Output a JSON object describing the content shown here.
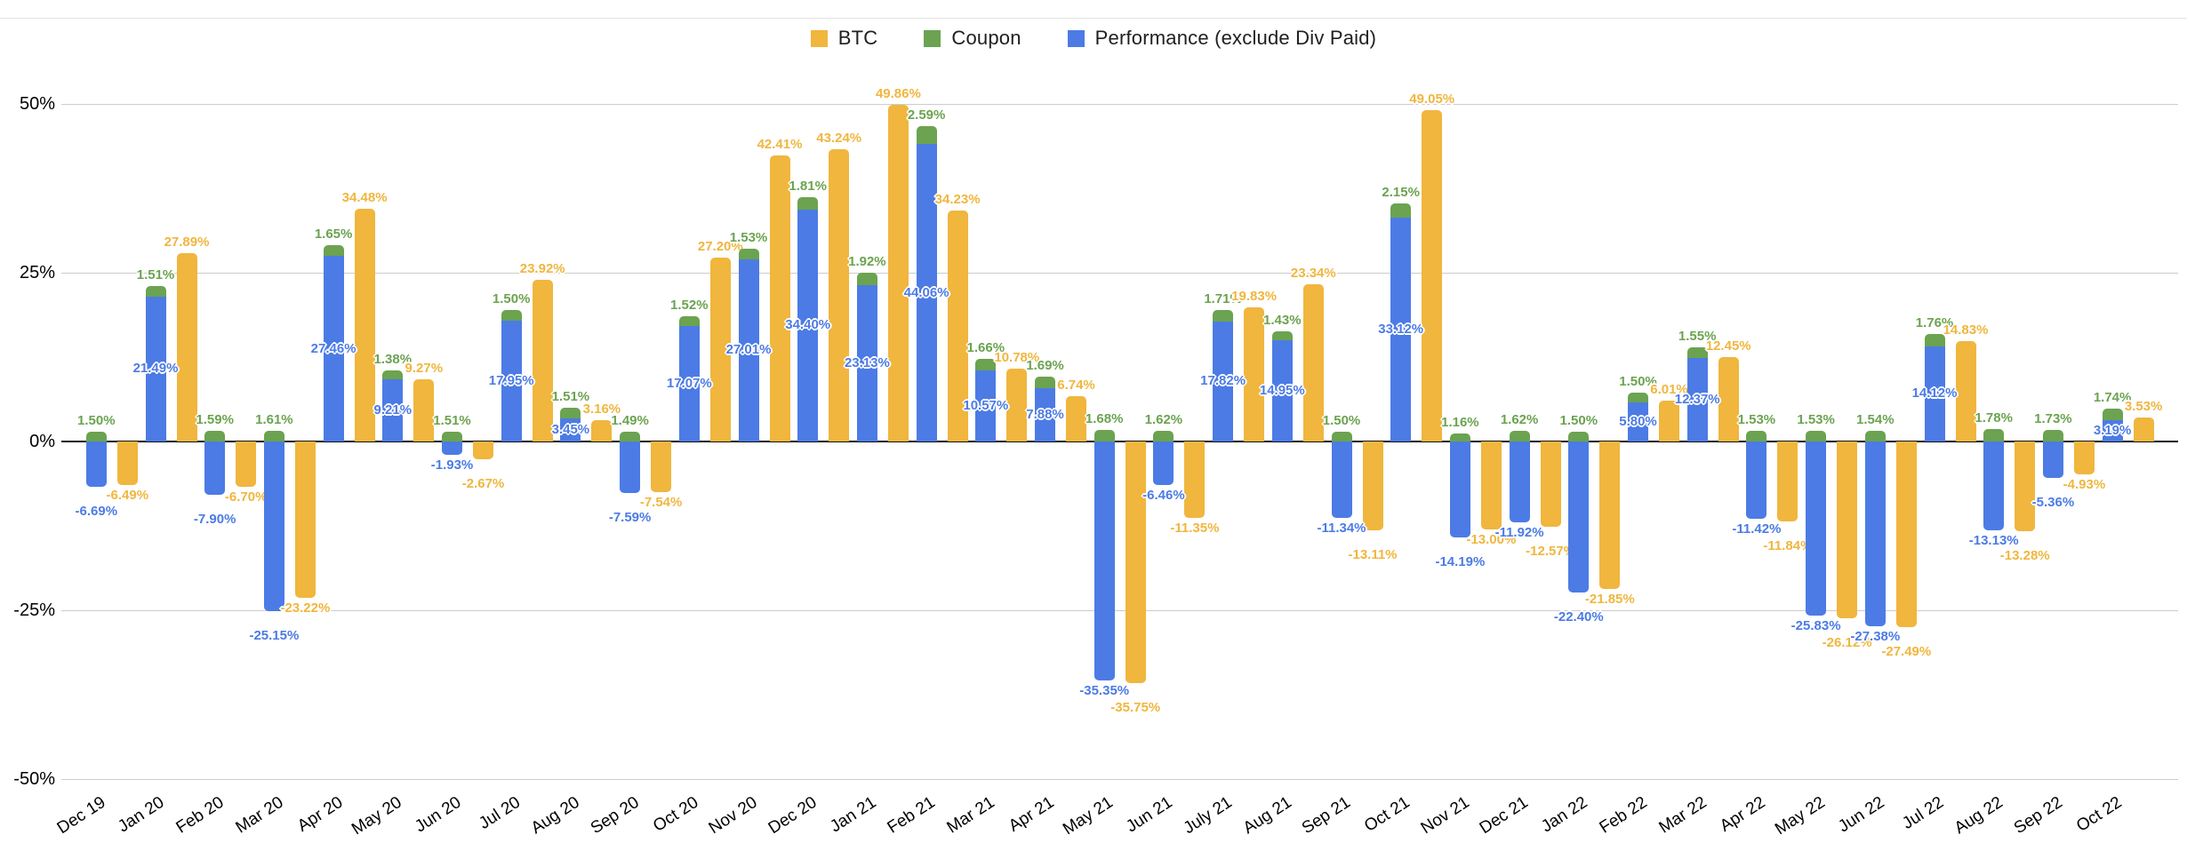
{
  "chart_data": {
    "type": "bar",
    "title": "",
    "xlabel": "",
    "ylabel": "",
    "ylim": [
      -50,
      50
    ],
    "y_ticks": [
      50,
      25,
      0,
      -25,
      -50
    ],
    "y_tick_format": "percent",
    "grid": true,
    "legend_position": "top",
    "bar_structure": "Coupon is stacked on top of Performance in one column; BTC is a separate adjacent column; every segment has a data label in its series color",
    "categories": [
      "Dec 19",
      "Jan 20",
      "Feb 20",
      "Mar 20",
      "Apr 20",
      "May 20",
      "Jun 20",
      "Jul 20",
      "Aug 20",
      "Sep 20",
      "Oct 20",
      "Nov 20",
      "Dec 20",
      "Jan 21",
      "Feb 21",
      "Mar 21",
      "Apr 21",
      "May 21",
      "Jun 21",
      "July 21",
      "Aug 21",
      "Sep 21",
      "Oct 21",
      "Nov 21",
      "Dec 21",
      "Jan 22",
      "Feb 22",
      "Mar 22",
      "Apr 22",
      "May 22",
      "Jun 22",
      "Jul 22",
      "Aug 22",
      "Sep 22",
      "Oct 22"
    ],
    "series": [
      {
        "name": "BTC",
        "color": "#F0B63E",
        "values": [
          -6.49,
          27.89,
          -6.7,
          -23.22,
          34.48,
          9.27,
          -2.67,
          23.92,
          3.16,
          -7.54,
          27.2,
          42.41,
          43.24,
          49.86,
          34.23,
          10.78,
          6.74,
          -35.75,
          -11.35,
          19.83,
          23.34,
          -13.11,
          49.05,
          -13.0,
          -12.57,
          -21.85,
          6.01,
          12.45,
          -11.84,
          -26.12,
          -27.49,
          14.83,
          -13.28,
          -4.93,
          3.53
        ]
      },
      {
        "name": "Coupon",
        "color": "#6BA350",
        "values": [
          1.5,
          1.51,
          1.59,
          1.61,
          1.65,
          1.38,
          1.51,
          1.5,
          1.51,
          1.49,
          1.52,
          1.53,
          1.81,
          1.92,
          2.59,
          1.66,
          1.69,
          1.68,
          1.62,
          1.71,
          1.43,
          1.5,
          2.15,
          1.16,
          1.62,
          1.5,
          1.5,
          1.55,
          1.53,
          1.53,
          1.54,
          1.76,
          1.78,
          1.73,
          1.74
        ]
      },
      {
        "name": "Performance (exclude Div Paid)",
        "color": "#4C7BE5",
        "values": [
          -6.69,
          21.49,
          -7.9,
          -25.15,
          27.46,
          9.21,
          -1.93,
          17.95,
          3.45,
          -7.59,
          17.07,
          27.01,
          34.4,
          23.13,
          44.06,
          10.57,
          7.88,
          -35.35,
          -6.46,
          17.82,
          14.95,
          -11.34,
          33.12,
          -14.19,
          -11.92,
          -22.4,
          5.8,
          12.37,
          -11.42,
          -25.83,
          -27.38,
          14.12,
          -13.13,
          -5.36,
          3.19
        ]
      }
    ]
  }
}
